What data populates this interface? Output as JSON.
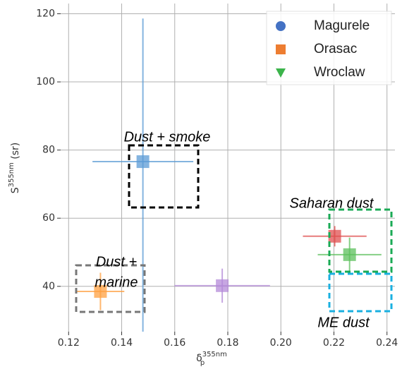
{
  "chart_data": {
    "type": "scatter",
    "xlabel": "δ",
    "xlabel_sub": "p",
    "xlabel_sup": "355nm",
    "ylabel": "S",
    "ylabel_sup": "355nm",
    "ylabel_rest": " (sr)",
    "xlim": [
      0.117,
      0.243
    ],
    "ylim": [
      26.7,
      123
    ],
    "xticks": [
      0.12,
      0.14,
      0.16,
      0.18,
      {
        "value": 0.2,
        "label": "0.20"
      },
      0.22,
      0.24
    ],
    "yticks": [
      40,
      60,
      80,
      100,
      120
    ],
    "grid": true,
    "legend_position": "upper right",
    "legend": [
      {
        "name": "Magurele",
        "color": "#4472c4",
        "marker": "circle"
      },
      {
        "name": "Orasac",
        "color": "#ed7d31",
        "marker": "square"
      },
      {
        "name": "Wroclaw",
        "color": "#3cb44b",
        "marker": "triangle"
      }
    ],
    "points": [
      {
        "color": "#5b9bd5",
        "x": 0.148,
        "y": 76.6,
        "xerr": [
          0.019,
          0.019
        ],
        "yerr": [
          50,
          42
        ]
      },
      {
        "color": "#ffa040",
        "x": 0.132,
        "y": 38.5,
        "xerr": [
          0.009,
          0.009
        ],
        "yerr": [
          5.5,
          5.5
        ]
      },
      {
        "color": "#e05050",
        "x": 0.2203,
        "y": 54.7,
        "xerr": [
          0.012,
          0.012
        ],
        "yerr": [
          3,
          3
        ]
      },
      {
        "color": "#5cc05c",
        "x": 0.2259,
        "y": 49.3,
        "xerr": [
          0.012,
          0.012
        ],
        "yerr": [
          5,
          5
        ]
      },
      {
        "color": "#b48ad8",
        "x": 0.1779,
        "y": 40.2,
        "xerr": [
          0.018,
          0.018
        ],
        "yerr": [
          5,
          5
        ]
      }
    ],
    "annotations": [
      "Dust + smoke",
      "Saharan dust",
      "ME dust",
      "Dust +",
      "marine"
    ]
  }
}
